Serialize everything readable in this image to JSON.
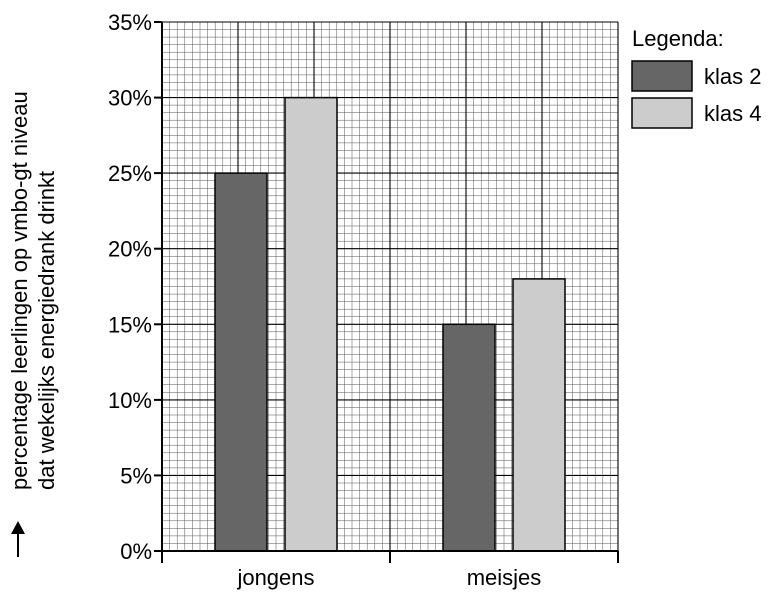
{
  "chart_data": {
    "type": "bar",
    "ylabel_line1": "percentage leerlingen op vmbo-gt niveau",
    "ylabel_line2": "dat wekelijks energiedrank drinkt",
    "categories": [
      "jongens",
      "meisjes"
    ],
    "series": [
      {
        "name": "klas 2",
        "color": "#666666",
        "values": [
          25,
          15
        ]
      },
      {
        "name": "klas 4",
        "color": "#cccccc",
        "values": [
          30,
          18
        ]
      }
    ],
    "ylim": [
      0,
      35
    ],
    "yticks": [
      0,
      5,
      10,
      15,
      20,
      25,
      30,
      35
    ],
    "ytick_labels": [
      "0%",
      "5%",
      "10%",
      "15%",
      "20%",
      "25%",
      "30%",
      "35%"
    ],
    "legend": {
      "title": "Legenda:",
      "placement": "top-right"
    },
    "grid": true
  }
}
